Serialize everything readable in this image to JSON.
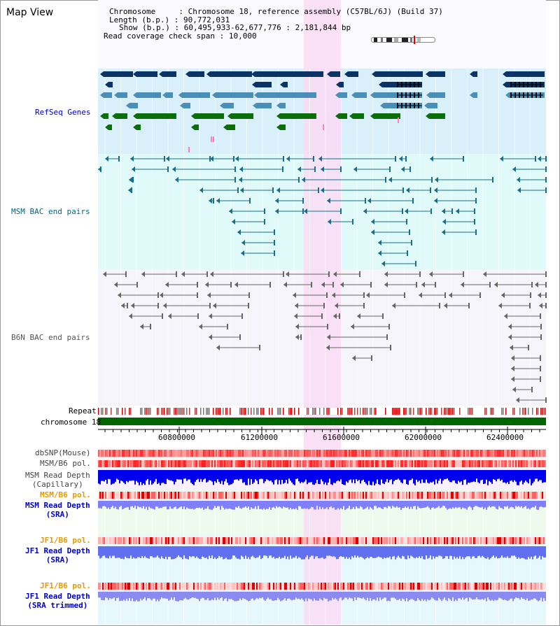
{
  "page": {
    "title": "Map View"
  },
  "info": {
    "chromosome_label": "Chromosome",
    "chromosome_value": "Chromosome 18, reference assembly (C57BL/6J) (Build 37)",
    "length_label": "Length (b.p.)",
    "length_value": "90,772,031",
    "show_label": "Show (b.p.)",
    "show_value": "60,495,933-62,677,776 : 2,181,844 bp",
    "coverage_label": "Read coverage check span",
    "coverage_value": "10,000"
  },
  "tracks": {
    "refseq": {
      "label": "RefSeq Genes",
      "color": "#0000cc"
    },
    "msm_bac": {
      "label": "MSM BAC end pairs",
      "color": "#006680"
    },
    "b6n_bac": {
      "label": "B6N BAC end pairs",
      "color": "#555555"
    },
    "repeat": {
      "label": "Repeat"
    },
    "chromosome": {
      "label": "chromosome 18",
      "color": "#006600"
    },
    "dbsnp": {
      "label": "dbSNP(Mouse)"
    },
    "msm_b6_pol_1": {
      "label": "MSM/B6 pol."
    },
    "msm_read_depth_cap": {
      "label_1": "MSM Read Depth",
      "label_2": "(Capillary)"
    },
    "msm_b6_pol_2": {
      "label": "MSM/B6 pol.",
      "color": "#e69900"
    },
    "msm_read_depth_sra": {
      "label_1": "MSM Read Depth",
      "label_2": "(SRA)",
      "color": "#0000cc"
    },
    "jf1_b6_pol_1": {
      "label": "JF1/B6 pol.",
      "color": "#e69900"
    },
    "jf1_read_depth_sra": {
      "label_1": "JF1 Read Depth",
      "label_2": "(SRA)",
      "color": "#0000cc"
    },
    "jf1_b6_pol_2": {
      "label": "JF1/B6 pol.",
      "color": "#e69900"
    },
    "jf1_read_depth_trim": {
      "label_1": "JF1 Read Depth",
      "label_2": "(SRA trimmed)",
      "color": "#0000cc"
    }
  },
  "axis": {
    "ticks": [
      "60800000",
      "61200000",
      "61600000",
      "62000000",
      "62400000"
    ]
  },
  "colors": {
    "refseq_bg": "#d9f0fa",
    "msm_bg": "#e0fafa",
    "highlight": "#fadcf5",
    "gene_dark": "#0a3366",
    "gene_mid": "#4a8fb8",
    "gene_green": "#0a6e0a"
  }
}
